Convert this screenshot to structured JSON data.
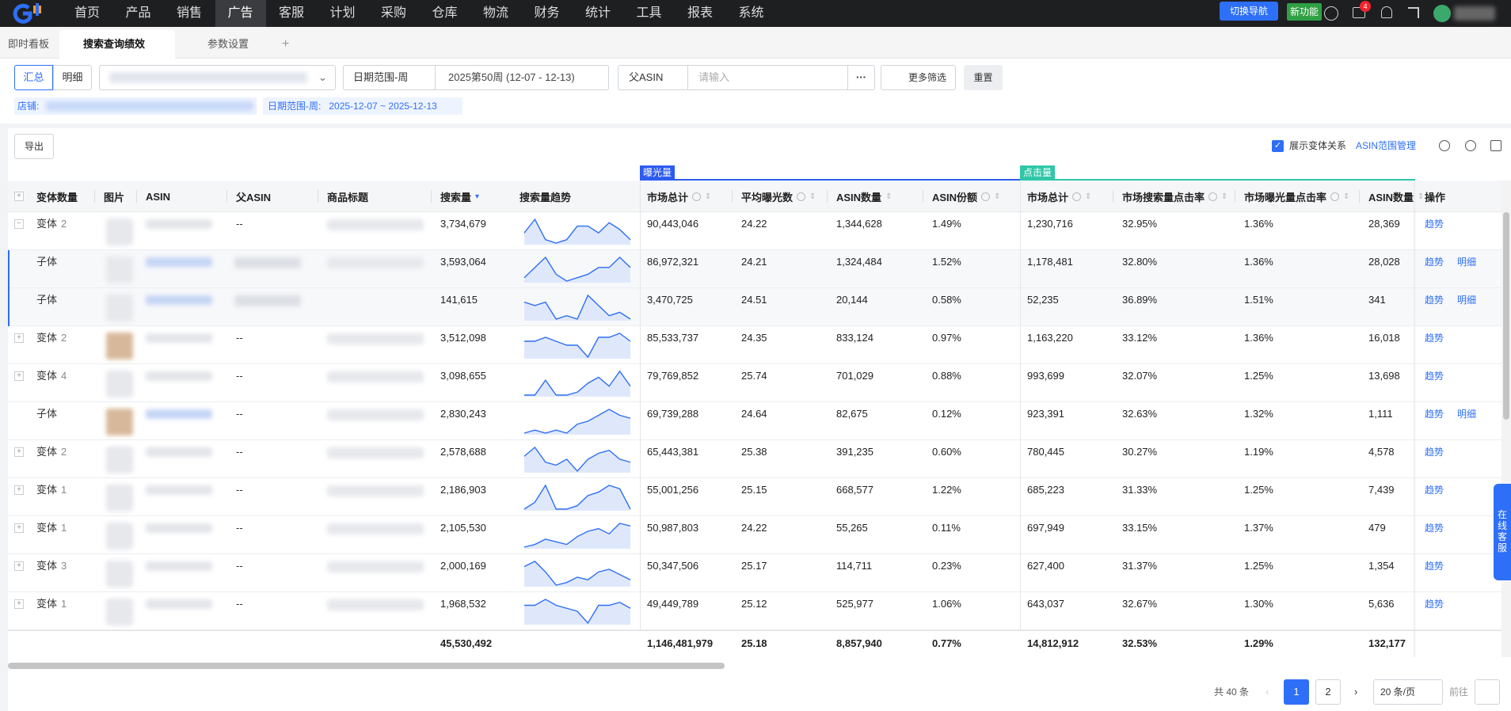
{
  "nav": {
    "menu": [
      "首页",
      "产品",
      "销售",
      "广告",
      "客服",
      "计划",
      "采购",
      "仓库",
      "物流",
      "财务",
      "统计",
      "工具",
      "报表",
      "系统"
    ],
    "active": 3,
    "switch_nav": "切换导航",
    "new_feature": "新功能",
    "notification_count": "4"
  },
  "tabs": {
    "items": [
      "即时看板",
      "搜索查询绩效",
      "参数设置"
    ],
    "active": 1,
    "add": "+"
  },
  "filters": {
    "modes": [
      "汇总",
      "明细"
    ],
    "active_mode": 0,
    "date_type": "日期范围-周",
    "date": "2025第50周 (12-07 - 12-13)",
    "asin_type": "父ASIN",
    "search_placeholder": "请输入",
    "more_button": "···",
    "more": "更多筛选",
    "reset": "重置"
  },
  "tags": {
    "shop_label": "店铺:",
    "date_label": "日期范围-周:",
    "date_value": "2025-12-07 ~ 2025-12-13"
  },
  "toolbar": {
    "export": "导出",
    "show_variants": "展示变体关系",
    "asin_range": "ASIN范围管理"
  },
  "table": {
    "groups": [
      "曝光量",
      "点击量"
    ],
    "columns": [
      "变体数量",
      "图片",
      "ASIN",
      "父ASIN",
      "商品标题",
      "搜索量",
      "搜索量趋势",
      "市场总计",
      "平均曝光数",
      "ASIN数量",
      "ASIN份额",
      "市场总计",
      "市场搜索量点击率",
      "市场曝光量点击率",
      "ASIN数量",
      "操作"
    ],
    "rows": [
      {
        "kind": "变体",
        "count": 2,
        "expanded": true,
        "parent_asin": "--",
        "cells": [
          "3,734,679",
          "90,443,046",
          "24.22",
          "1,344,628",
          "1.49%",
          "1,230,716",
          "32.95%",
          "1.36%",
          "28,369"
        ],
        "trend": [
          4,
          8,
          2,
          1,
          2,
          6,
          6,
          4,
          7,
          5,
          2
        ],
        "actions": [
          "趋势"
        ]
      },
      {
        "kind": "子体",
        "cells": [
          "3,593,064",
          "86,972,321",
          "24.21",
          "1,324,484",
          "1.52%",
          "1,178,481",
          "32.80%",
          "1.36%",
          "28,028"
        ],
        "trend": [
          2,
          5,
          8,
          3,
          1,
          2,
          3,
          5,
          5,
          8,
          5
        ],
        "actions": [
          "趋势",
          "明细"
        ]
      },
      {
        "kind": "子体",
        "cells": [
          "141,615",
          "3,470,725",
          "24.51",
          "20,144",
          "0.58%",
          "52,235",
          "36.89%",
          "1.51%",
          "341"
        ],
        "trend": [
          6,
          5,
          6,
          1,
          2,
          1,
          8,
          5,
          2,
          3,
          1
        ],
        "actions": [
          "趋势",
          "明细"
        ]
      },
      {
        "kind": "变体",
        "count": 2,
        "expanded": false,
        "parent_asin": "--",
        "cells": [
          "3,512,098",
          "85,533,737",
          "24.35",
          "833,124",
          "0.97%",
          "1,163,220",
          "33.12%",
          "1.36%",
          "16,018"
        ],
        "trend": [
          6,
          6,
          7,
          6,
          5,
          5,
          2,
          7,
          7,
          8,
          6
        ],
        "actions": [
          "趋势"
        ]
      },
      {
        "kind": "变体",
        "count": 4,
        "expanded": false,
        "parent_asin": "--",
        "cells": [
          "3,098,655",
          "79,769,852",
          "25.74",
          "701,029",
          "0.88%",
          "993,699",
          "32.07%",
          "1.25%",
          "13,698"
        ],
        "trend": [
          1,
          1,
          6,
          1,
          1,
          2,
          5,
          7,
          4,
          9,
          4
        ],
        "actions": [
          "趋势"
        ]
      },
      {
        "kind": "子体",
        "parent_asin": "--",
        "cells": [
          "2,830,243",
          "69,739,288",
          "24.64",
          "82,675",
          "0.12%",
          "923,391",
          "32.63%",
          "1.32%",
          "1,111"
        ],
        "trend": [
          1,
          2,
          1,
          2,
          1,
          4,
          5,
          7,
          9,
          7,
          6
        ],
        "actions": [
          "趋势",
          "明细"
        ]
      },
      {
        "kind": "变体",
        "count": 2,
        "expanded": false,
        "parent_asin": "--",
        "cells": [
          "2,578,688",
          "65,443,381",
          "25.38",
          "391,235",
          "0.60%",
          "780,445",
          "30.27%",
          "1.19%",
          "4,578"
        ],
        "trend": [
          5,
          8,
          3,
          2,
          4,
          0,
          4,
          6,
          7,
          4,
          3
        ],
        "actions": [
          "趋势"
        ]
      },
      {
        "kind": "变体",
        "count": 1,
        "expanded": false,
        "parent_asin": "--",
        "cells": [
          "2,186,903",
          "55,001,256",
          "25.15",
          "668,577",
          "1.22%",
          "685,223",
          "31.33%",
          "1.25%",
          "7,439"
        ],
        "trend": [
          1,
          3,
          8,
          1,
          1,
          2,
          5,
          6,
          8,
          7,
          1
        ],
        "actions": [
          "趋势"
        ]
      },
      {
        "kind": "变体",
        "count": 1,
        "expanded": false,
        "parent_asin": "--",
        "cells": [
          "2,105,530",
          "50,987,803",
          "24.22",
          "55,265",
          "0.11%",
          "697,949",
          "33.15%",
          "1.37%",
          "479"
        ],
        "trend": [
          1,
          2,
          4,
          3,
          2,
          5,
          7,
          8,
          6,
          10,
          9
        ],
        "actions": [
          "趋势"
        ]
      },
      {
        "kind": "变体",
        "count": 3,
        "expanded": false,
        "parent_asin": "--",
        "cells": [
          "2,000,169",
          "50,347,506",
          "25.17",
          "114,711",
          "0.23%",
          "627,400",
          "31.37%",
          "1.25%",
          "1,354"
        ],
        "trend": [
          7,
          9,
          5,
          0,
          1,
          3,
          2,
          5,
          6,
          4,
          2
        ],
        "actions": [
          "趋势"
        ]
      },
      {
        "kind": "变体",
        "count": 1,
        "expanded": false,
        "parent_asin": "--",
        "cells": [
          "1,968,532",
          "49,449,789",
          "25.12",
          "525,977",
          "1.06%",
          "643,037",
          "32.67%",
          "1.30%",
          "5,636"
        ],
        "trend": [
          6,
          6,
          8,
          6,
          5,
          4,
          0,
          6,
          6,
          7,
          5
        ],
        "actions": [
          "趋势"
        ]
      }
    ],
    "totals": [
      "45,530,492",
      "1,146,481,979",
      "25.18",
      "8,857,940",
      "0.77%",
      "14,812,912",
      "32.53%",
      "1.29%",
      "132,177"
    ]
  },
  "pagination": {
    "total": "共 40 条",
    "pages": [
      1,
      2
    ],
    "current": 1,
    "page_size": "20 条/页",
    "goto": "前往"
  },
  "service": [
    "在",
    "线",
    "客",
    "服"
  ]
}
